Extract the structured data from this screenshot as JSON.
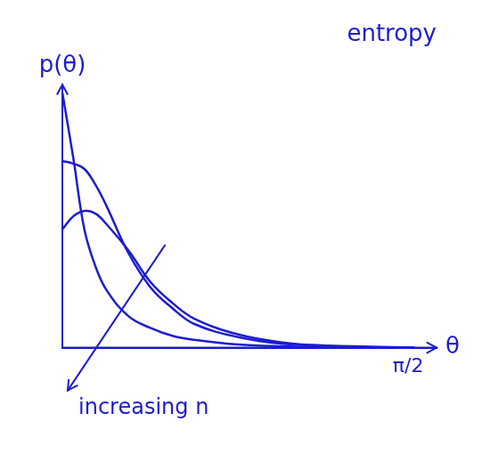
{
  "chart_data": {
    "type": "line",
    "title": "entropy",
    "x_label": "θ",
    "y_label": "p(θ)",
    "annotations": [
      {
        "text": "increasing n"
      }
    ],
    "x": [
      0,
      0.05,
      0.1,
      0.15,
      0.2,
      0.3,
      0.4,
      0.5,
      0.6,
      0.8,
      1.0,
      1.2,
      1.4,
      1.6
    ],
    "series": [
      {
        "values": [
          0.97,
          0.72,
          0.45,
          0.31,
          0.22,
          0.12,
          0.075,
          0.045,
          0.03,
          0.012,
          0.005,
          0.002,
          0,
          0
        ]
      },
      {
        "values": [
          0.71,
          0.7,
          0.68,
          0.62,
          0.54,
          0.36,
          0.23,
          0.15,
          0.09,
          0.04,
          0.015,
          0.008,
          0.004,
          0
        ]
      },
      {
        "values": [
          0.45,
          0.5,
          0.52,
          0.51,
          0.47,
          0.37,
          0.25,
          0.17,
          0.11,
          0.05,
          0.02,
          0.007,
          0.002,
          0
        ]
      }
    ],
    "color": "#1c1cd0",
    "xlim": [
      0,
      1.7
    ],
    "xticks": [
      {
        "value": 1.5708,
        "label": "π/2"
      }
    ],
    "ylim": [
      0,
      1
    ],
    "grid": false,
    "tick_labels": "x"
  }
}
